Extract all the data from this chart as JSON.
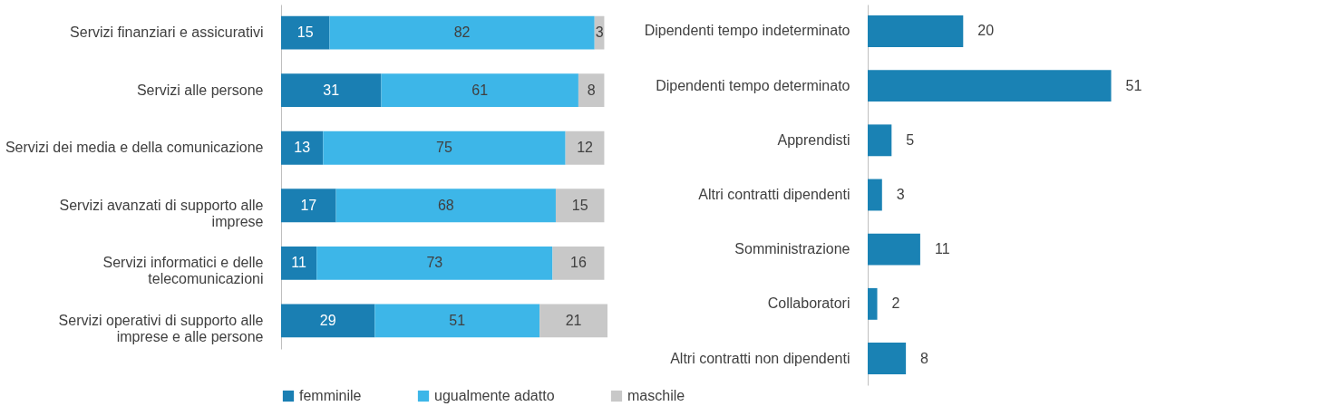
{
  "chart_data": [
    {
      "type": "bar",
      "orientation": "horizontal",
      "stacked": true,
      "categories": [
        "Servizi finanziari e assicurativi",
        "Servizi alle persone",
        "Servizi dei media e della comunicazione",
        "Servizi avanzati di supporto alle imprese",
        "Servizi informatici e delle telecomunicazioni",
        "Servizi operativi di supporto alle imprese e alle persone"
      ],
      "series": [
        {
          "name": "femminile",
          "color": "#1a7fb3",
          "values": [
            15,
            31,
            13,
            17,
            11,
            29
          ]
        },
        {
          "name": "ugualmente adatto",
          "color": "#3db6e8",
          "values": [
            82,
            61,
            75,
            68,
            73,
            51
          ]
        },
        {
          "name": "maschile",
          "color": "#c8c8c8",
          "values": [
            3,
            8,
            12,
            15,
            16,
            21
          ]
        }
      ],
      "data_labels": true,
      "legend": "bottom"
    },
    {
      "type": "bar",
      "orientation": "horizontal",
      "categories": [
        "Dipendenti tempo indeterminato",
        "Dipendenti tempo determinato",
        "Apprendisti",
        "Altri contratti dipendenti",
        "Somministrazione",
        "Collaboratori",
        "Altri contratti non dipendenti"
      ],
      "values": [
        20,
        51,
        5,
        3,
        11,
        2,
        8
      ],
      "color": "#1a82b4",
      "data_labels": true
    }
  ]
}
